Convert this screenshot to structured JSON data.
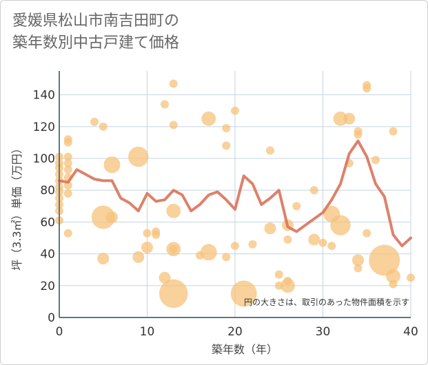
{
  "title": "愛媛県松山市南吉田町の\n築年数別中古戸建て価格",
  "chart_data": {
    "type": "scatter",
    "title": "愛媛県松山市南吉田町の築年数別中古戸建て価格",
    "xlabel": "築年数（年）",
    "ylabel": "坪（3.3㎡）単価（万円）",
    "xlim": [
      0,
      40
    ],
    "ylim": [
      0,
      155
    ],
    "xticks": [
      "0",
      "10",
      "20",
      "30",
      "40"
    ],
    "yticks": [
      "0",
      "20",
      "40",
      "60",
      "80",
      "100",
      "120",
      "140"
    ],
    "x_tick_values": [
      0,
      10,
      20,
      30,
      40
    ],
    "y_tick_values": [
      0,
      20,
      40,
      60,
      80,
      100,
      120,
      140
    ],
    "grid": true,
    "note": "円の大きさは、取引のあった物件面積を示す",
    "colors": {
      "bubble": "#f5c27a",
      "line": "#d9735a",
      "grid": "#c5d3e0",
      "axis": "#5f7687"
    },
    "bubbles": [
      {
        "x": 0,
        "y": 101,
        "s": 1
      },
      {
        "x": 0,
        "y": 97,
        "s": 1
      },
      {
        "x": 0,
        "y": 94,
        "s": 1
      },
      {
        "x": 0,
        "y": 90,
        "s": 1
      },
      {
        "x": 0,
        "y": 86,
        "s": 1
      },
      {
        "x": 0,
        "y": 82,
        "s": 1
      },
      {
        "x": 0,
        "y": 79,
        "s": 1
      },
      {
        "x": 0,
        "y": 75,
        "s": 1
      },
      {
        "x": 0,
        "y": 71,
        "s": 1
      },
      {
        "x": 0,
        "y": 67,
        "s": 1
      },
      {
        "x": 0,
        "y": 61,
        "s": 1
      },
      {
        "x": 1,
        "y": 112,
        "s": 1
      },
      {
        "x": 1,
        "y": 110,
        "s": 1
      },
      {
        "x": 1,
        "y": 101,
        "s": 1
      },
      {
        "x": 1,
        "y": 97,
        "s": 1
      },
      {
        "x": 1,
        "y": 93,
        "s": 1
      },
      {
        "x": 1,
        "y": 88,
        "s": 1
      },
      {
        "x": 1,
        "y": 83,
        "s": 1
      },
      {
        "x": 1,
        "y": 78,
        "s": 1
      },
      {
        "x": 1,
        "y": 53,
        "s": 1
      },
      {
        "x": 4,
        "y": 123,
        "s": 1
      },
      {
        "x": 5,
        "y": 120,
        "s": 1
      },
      {
        "x": 6,
        "y": 96,
        "s": 4
      },
      {
        "x": 5,
        "y": 63,
        "s": 8
      },
      {
        "x": 6,
        "y": 63,
        "s": 2
      },
      {
        "x": 5,
        "y": 37,
        "s": 2
      },
      {
        "x": 9,
        "y": 101,
        "s": 6
      },
      {
        "x": 10,
        "y": 53,
        "s": 1
      },
      {
        "x": 10,
        "y": 44,
        "s": 2
      },
      {
        "x": 9,
        "y": 38,
        "s": 2
      },
      {
        "x": 11,
        "y": 54,
        "s": 1
      },
      {
        "x": 11,
        "y": 52,
        "s": 1
      },
      {
        "x": 12,
        "y": 134,
        "s": 1
      },
      {
        "x": 12,
        "y": 25,
        "s": 2
      },
      {
        "x": 13,
        "y": 147,
        "s": 1
      },
      {
        "x": 13,
        "y": 121,
        "s": 1
      },
      {
        "x": 13,
        "y": 67,
        "s": 3
      },
      {
        "x": 13,
        "y": 43,
        "s": 3
      },
      {
        "x": 13,
        "y": 43,
        "s": 1
      },
      {
        "x": 13,
        "y": 15,
        "s": 12
      },
      {
        "x": 17,
        "y": 125,
        "s": 3
      },
      {
        "x": 16,
        "y": 39,
        "s": 1
      },
      {
        "x": 17,
        "y": 41,
        "s": 4
      },
      {
        "x": 19,
        "y": 119,
        "s": 1
      },
      {
        "x": 19,
        "y": 108,
        "s": 1
      },
      {
        "x": 19,
        "y": 38,
        "s": 1
      },
      {
        "x": 20,
        "y": 130,
        "s": 1
      },
      {
        "x": 20,
        "y": 45,
        "s": 1
      },
      {
        "x": 21,
        "y": 15,
        "s": 10
      },
      {
        "x": 22,
        "y": 46,
        "s": 1
      },
      {
        "x": 24,
        "y": 105,
        "s": 1
      },
      {
        "x": 24,
        "y": 56,
        "s": 2
      },
      {
        "x": 25,
        "y": 27,
        "s": 1
      },
      {
        "x": 25,
        "y": 20,
        "s": 1
      },
      {
        "x": 26,
        "y": 58,
        "s": 2
      },
      {
        "x": 26,
        "y": 49,
        "s": 1
      },
      {
        "x": 26,
        "y": 23,
        "s": 1
      },
      {
        "x": 26,
        "y": 20,
        "s": 3
      },
      {
        "x": 27,
        "y": 70,
        "s": 1
      },
      {
        "x": 29,
        "y": 80,
        "s": 1
      },
      {
        "x": 29,
        "y": 49,
        "s": 2
      },
      {
        "x": 30,
        "y": 47,
        "s": 1
      },
      {
        "x": 31,
        "y": 45,
        "s": 1
      },
      {
        "x": 31,
        "y": 65,
        "s": 4
      },
      {
        "x": 32,
        "y": 58,
        "s": 6
      },
      {
        "x": 32,
        "y": 125,
        "s": 3
      },
      {
        "x": 33,
        "y": 125,
        "s": 2
      },
      {
        "x": 33,
        "y": 97,
        "s": 1
      },
      {
        "x": 34,
        "y": 117,
        "s": 1
      },
      {
        "x": 34,
        "y": 115,
        "s": 1
      },
      {
        "x": 34,
        "y": 36,
        "s": 2
      },
      {
        "x": 34,
        "y": 31,
        "s": 1
      },
      {
        "x": 35,
        "y": 146,
        "s": 1
      },
      {
        "x": 35,
        "y": 144,
        "s": 1
      },
      {
        "x": 35,
        "y": 53,
        "s": 1
      },
      {
        "x": 36,
        "y": 99,
        "s": 1
      },
      {
        "x": 38,
        "y": 117,
        "s": 1
      },
      {
        "x": 37,
        "y": 36,
        "s": 14
      },
      {
        "x": 38,
        "y": 26,
        "s": 3
      },
      {
        "x": 38,
        "y": 21,
        "s": 1
      },
      {
        "x": 40,
        "y": 25,
        "s": 1
      }
    ],
    "series": [
      {
        "type": "line",
        "x": [
          0,
          1,
          2,
          3,
          4,
          5,
          6,
          7,
          8,
          9,
          10,
          11,
          12,
          13,
          14,
          15,
          16,
          17,
          18,
          19,
          20,
          21,
          22,
          23,
          24,
          25,
          26,
          27,
          28,
          29,
          30,
          31,
          32,
          33,
          34,
          35,
          36,
          37,
          38,
          39,
          40
        ],
        "values": [
          86,
          85,
          93,
          90,
          87,
          86,
          86,
          75,
          72,
          67,
          78,
          73,
          74,
          80,
          77,
          67,
          71,
          77,
          79,
          74,
          68,
          89,
          84,
          71,
          75,
          80,
          57,
          54,
          58,
          62,
          66,
          74,
          84,
          103,
          111,
          101,
          84,
          76,
          52,
          45,
          50
        ]
      }
    ]
  }
}
